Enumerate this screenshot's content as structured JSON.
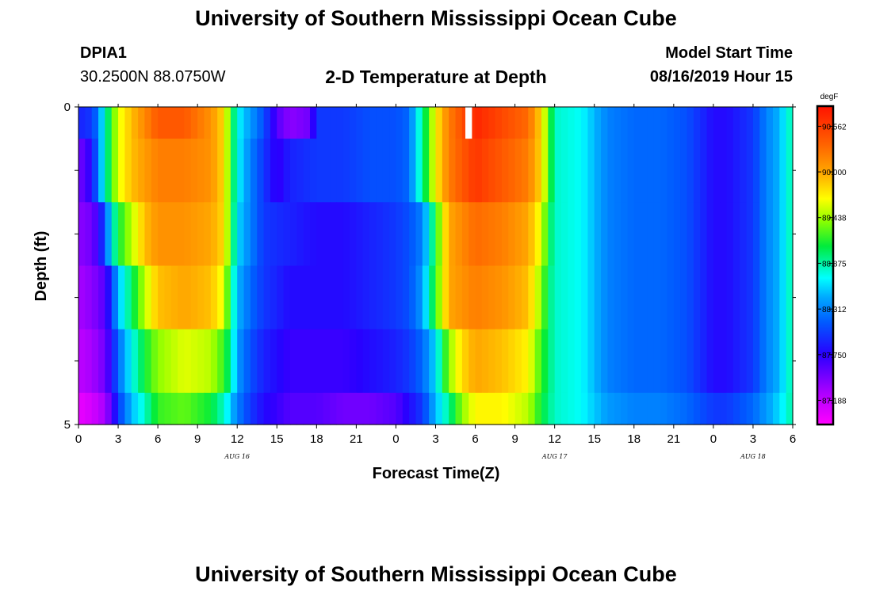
{
  "page": {
    "title": "University of Southern Mississippi Ocean Cube",
    "footer_title": "University of Southern Mississippi Ocean Cube",
    "station_id": "DPIA1",
    "station_coords": "30.2500N 88.0750W",
    "subtitle": "2-D Temperature at Depth",
    "model_start_label": "Model Start Time",
    "model_start_value": "08/16/2019 Hour 15"
  },
  "chart_data": {
    "type": "heatmap",
    "title": "2-D Temperature at Depth",
    "xlabel": "Forecast Time(Z)",
    "ylabel": "Depth (ft)",
    "x_range_hours": [
      0,
      54
    ],
    "y_range_ft": [
      0,
      5
    ],
    "x_tick_labels": [
      "0",
      "3",
      "6",
      "9",
      "12",
      "15",
      "18",
      "21",
      "0",
      "3",
      "6",
      "9",
      "12",
      "15",
      "18",
      "21",
      "0",
      "3",
      "6"
    ],
    "y_tick_labels": [
      "0",
      "5"
    ],
    "date_labels": [
      {
        "label": "AUG 16",
        "hour": 12
      },
      {
        "label": "AUG 17",
        "hour": 36
      },
      {
        "label": "AUG 18",
        "hour": 51
      }
    ],
    "colorbar": {
      "unit": "degF",
      "min": 86.9,
      "max": 90.8,
      "tick_labels": [
        "90.562",
        "90.000",
        "89.438",
        "88.875",
        "88.312",
        "87.750",
        "87.188"
      ],
      "tick_values": [
        90.562,
        90.0,
        89.438,
        88.875,
        88.312,
        87.75,
        87.188
      ]
    },
    "depth_levels_ft": [
      0.25,
      1.0,
      2.0,
      3.0,
      4.0,
      4.75
    ],
    "missing_cells": [
      {
        "hour": 29.5,
        "depth_level": 0
      }
    ],
    "temperature_by_depth_degF": [
      {
        "depth_ft": 0.25,
        "hours": [
          0,
          1,
          1.5,
          2,
          2.5,
          3,
          4,
          6,
          8,
          10,
          11,
          11.5,
          12,
          13,
          14,
          15,
          16,
          17.5,
          18,
          20,
          22,
          24,
          25,
          25.5,
          26,
          26.5,
          27,
          28,
          30,
          32,
          34,
          35,
          35.5,
          36,
          38,
          40,
          42,
          44,
          46,
          48,
          49,
          50,
          51,
          52,
          53,
          54
        ],
        "values": [
          87.9,
          88.0,
          88.3,
          88.8,
          89.2,
          89.6,
          89.9,
          90.4,
          90.4,
          90.1,
          89.8,
          89.2,
          88.7,
          88.4,
          88.1,
          87.6,
          87.4,
          87.5,
          88.0,
          88.0,
          88.1,
          88.1,
          88.2,
          88.6,
          88.9,
          89.3,
          89.7,
          90.2,
          90.7,
          90.5,
          90.3,
          89.8,
          89.3,
          88.8,
          88.7,
          88.3,
          88.2,
          88.2,
          88.1,
          87.8,
          87.8,
          87.9,
          88.0,
          88.3,
          88.5,
          88.9
        ]
      },
      {
        "depth_ft": 1.0,
        "hours": [
          0,
          0.5,
          1,
          1.5,
          2,
          2.5,
          3,
          4,
          6,
          8,
          10,
          11,
          11.5,
          12,
          13,
          14,
          15,
          16,
          18,
          20,
          22,
          24,
          25,
          25.5,
          26,
          26.5,
          27,
          28,
          30,
          32,
          34,
          35,
          35.5,
          36,
          38,
          40,
          42,
          44,
          46,
          48,
          49,
          50,
          51,
          52,
          53,
          54
        ],
        "values": [
          87.5,
          87.6,
          87.8,
          88.3,
          88.8,
          89.2,
          89.6,
          89.9,
          90.2,
          90.2,
          90.1,
          89.8,
          89.2,
          88.7,
          88.3,
          88.0,
          87.7,
          87.9,
          88.0,
          88.0,
          88.1,
          88.1,
          88.2,
          88.6,
          88.9,
          89.3,
          89.7,
          90.2,
          90.6,
          90.4,
          90.2,
          89.8,
          89.3,
          88.8,
          88.7,
          88.3,
          88.2,
          88.2,
          88.1,
          87.8,
          87.8,
          87.9,
          88.0,
          88.3,
          88.5,
          88.9
        ]
      },
      {
        "depth_ft": 2.0,
        "hours": [
          0,
          1,
          1.5,
          2,
          2.5,
          3,
          4,
          5,
          6,
          8,
          10,
          11,
          11.5,
          12,
          13,
          14,
          16,
          18,
          20,
          22,
          24,
          25,
          26,
          26.5,
          27,
          27.5,
          28,
          30,
          32,
          34,
          35,
          35.5,
          36,
          38,
          40,
          42,
          44,
          46,
          48,
          49,
          50,
          51,
          52,
          53,
          54
        ],
        "values": [
          87.4,
          87.5,
          87.7,
          88.1,
          88.7,
          89.1,
          89.5,
          89.9,
          90.1,
          90.1,
          90.0,
          89.8,
          89.2,
          88.6,
          88.3,
          88.0,
          87.9,
          87.8,
          87.8,
          87.9,
          88.0,
          88.1,
          88.3,
          88.7,
          89.1,
          89.6,
          90.0,
          90.3,
          90.2,
          90.0,
          89.6,
          89.1,
          88.8,
          88.7,
          88.3,
          88.2,
          88.2,
          88.1,
          87.8,
          87.8,
          87.9,
          88.0,
          88.3,
          88.5,
          88.9
        ]
      },
      {
        "depth_ft": 3.0,
        "hours": [
          0,
          1,
          2,
          2.5,
          3,
          4,
          5,
          6,
          8,
          10,
          11,
          11.5,
          12,
          13,
          14,
          16,
          18,
          20,
          22,
          24,
          25,
          26,
          26.5,
          27,
          27.5,
          28,
          30,
          32,
          34,
          35,
          35.5,
          36,
          38,
          40,
          42,
          44,
          46,
          48,
          49,
          50,
          51,
          52,
          53,
          54
        ],
        "values": [
          87.3,
          87.4,
          87.6,
          88.0,
          88.5,
          89.0,
          89.5,
          89.9,
          90.0,
          89.9,
          89.6,
          89.0,
          88.5,
          88.2,
          88.0,
          87.8,
          87.8,
          87.8,
          87.9,
          88.0,
          88.1,
          88.4,
          88.8,
          89.2,
          89.6,
          90.0,
          90.2,
          90.1,
          89.9,
          89.4,
          89.0,
          88.8,
          88.7,
          88.3,
          88.2,
          88.2,
          88.1,
          87.8,
          87.8,
          87.9,
          88.0,
          88.3,
          88.5,
          88.9
        ]
      },
      {
        "depth_ft": 4.0,
        "hours": [
          0,
          1,
          2,
          2.5,
          3,
          4,
          5,
          6,
          8,
          10,
          11,
          11.5,
          12,
          13,
          14,
          16,
          18,
          20,
          22,
          24,
          25,
          26,
          27,
          27.5,
          28,
          29,
          30,
          32,
          34,
          35,
          36,
          38,
          40,
          42,
          44,
          46,
          48,
          49,
          50,
          51,
          52,
          53,
          54
        ],
        "values": [
          87.2,
          87.3,
          87.5,
          87.8,
          88.2,
          88.7,
          89.1,
          89.4,
          89.6,
          89.5,
          89.2,
          88.9,
          88.4,
          88.1,
          87.9,
          87.7,
          87.7,
          87.7,
          87.8,
          87.9,
          88.0,
          88.2,
          88.6,
          89.0,
          89.4,
          89.8,
          90.0,
          89.9,
          89.7,
          89.2,
          88.8,
          88.7,
          88.3,
          88.2,
          88.2,
          88.1,
          87.8,
          87.8,
          87.9,
          88.0,
          88.3,
          88.5,
          88.9
        ]
      },
      {
        "depth_ft": 4.75,
        "hours": [
          0,
          1,
          2,
          2.5,
          3,
          4,
          5,
          6,
          8,
          10,
          11,
          12,
          13,
          14,
          16,
          18,
          20,
          22,
          24,
          25,
          26,
          27,
          28,
          29,
          30,
          32,
          34,
          35,
          36,
          38,
          40,
          42,
          44,
          46,
          48,
          49,
          50,
          51,
          52,
          53,
          54
        ],
        "values": [
          87.0,
          87.1,
          87.3,
          87.6,
          88.0,
          88.5,
          88.8,
          89.2,
          89.3,
          89.1,
          88.8,
          88.3,
          88.0,
          87.8,
          87.6,
          87.6,
          87.5,
          87.5,
          87.6,
          87.8,
          88.0,
          88.5,
          88.9,
          89.4,
          89.7,
          89.7,
          89.5,
          89.1,
          88.8,
          88.7,
          88.4,
          88.3,
          88.3,
          88.2,
          88.0,
          88.0,
          88.1,
          88.2,
          88.4,
          88.6,
          88.9
        ]
      }
    ]
  }
}
